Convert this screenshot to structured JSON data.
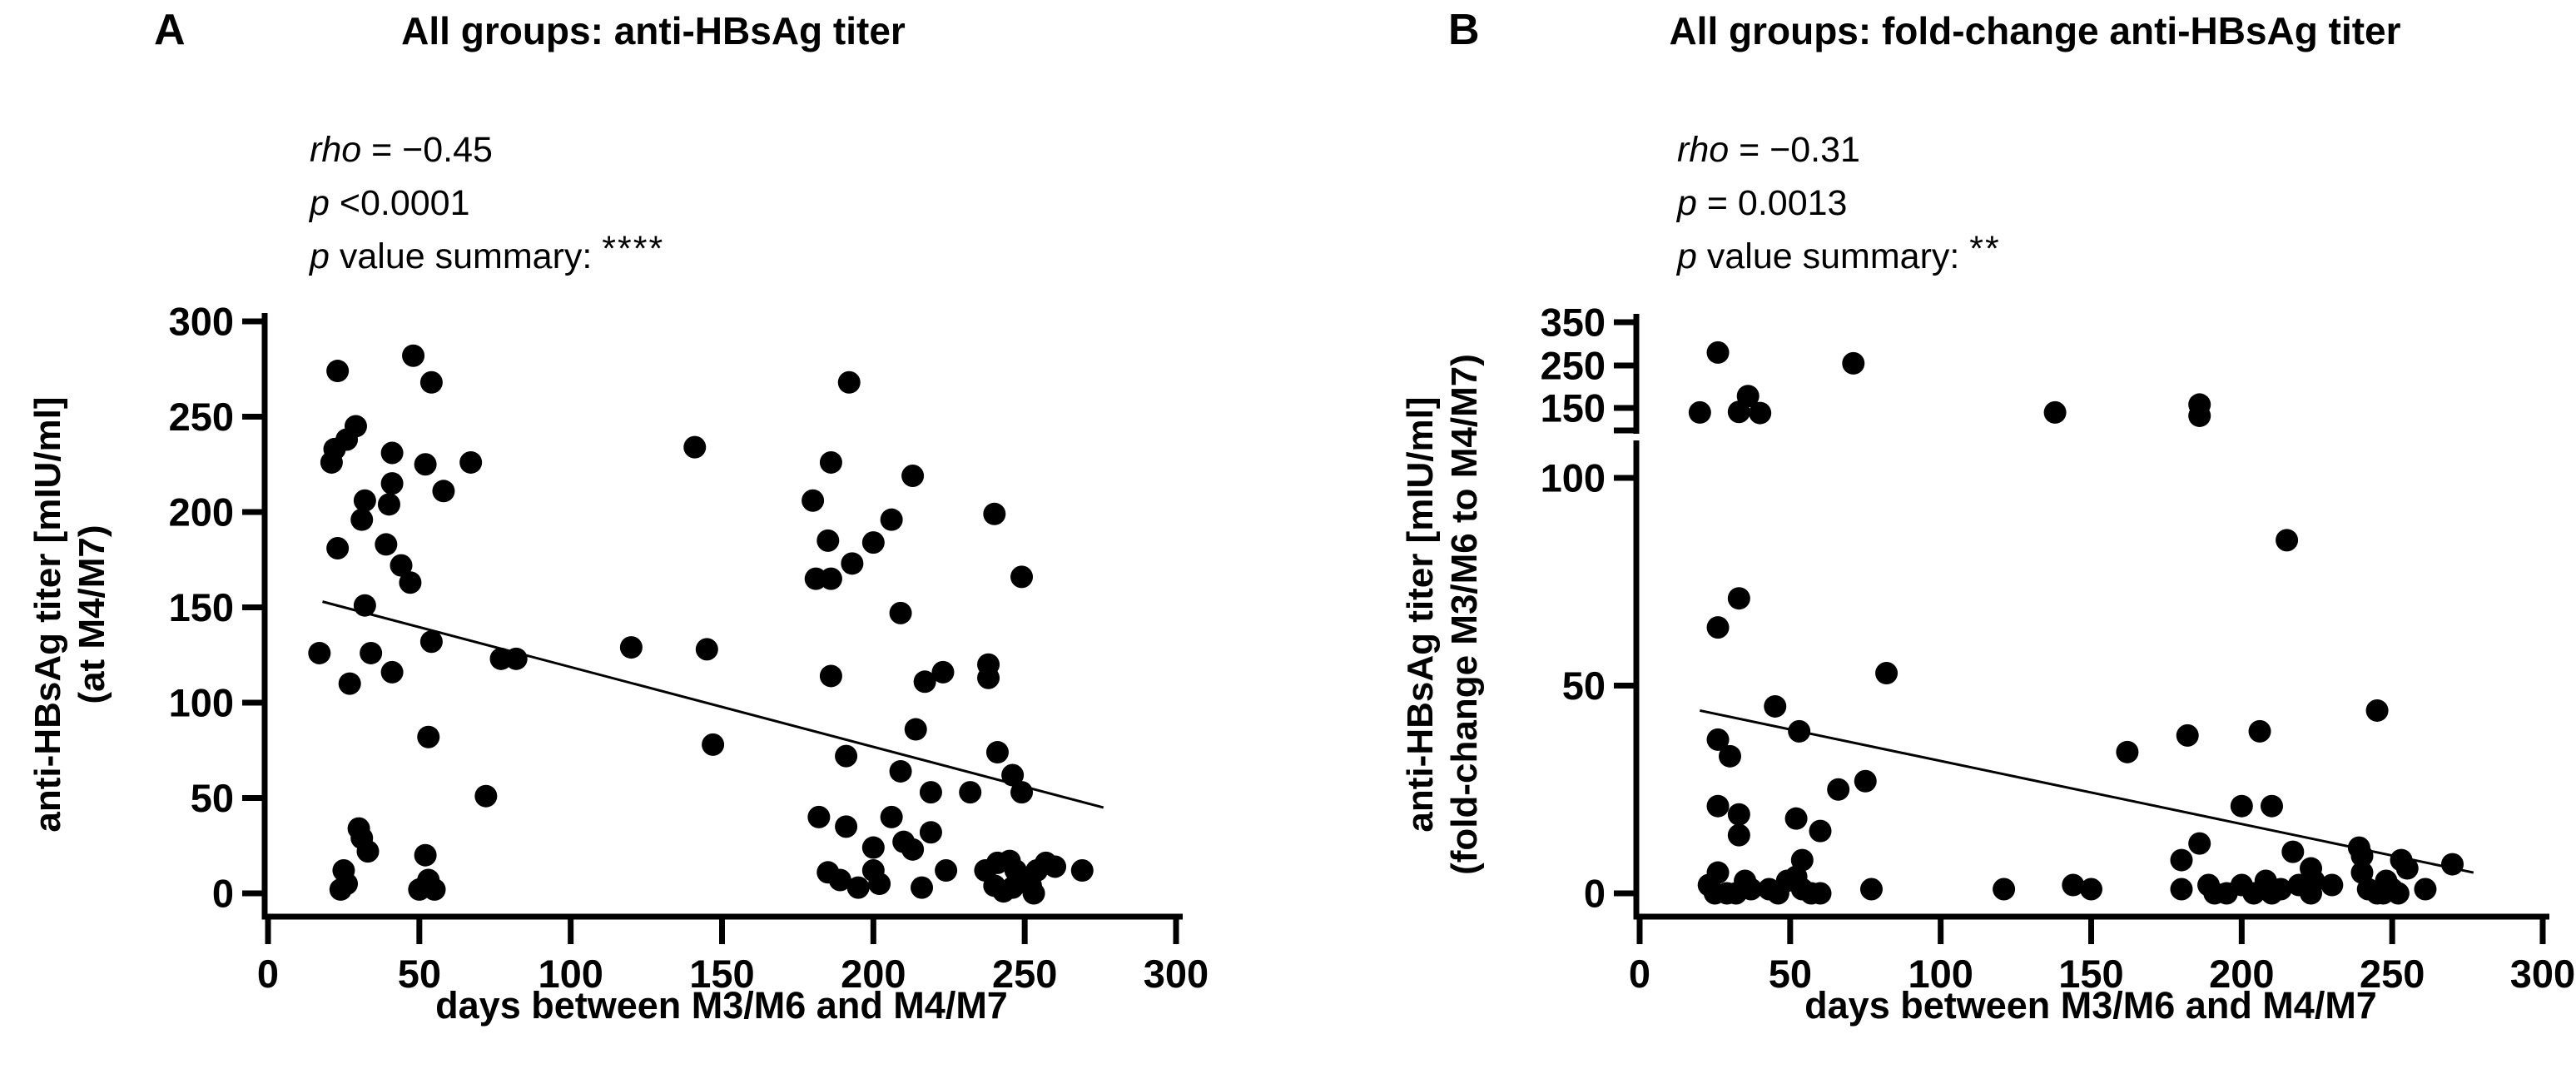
{
  "page": {
    "background": "#ffffff",
    "text_color": "#000000",
    "point_color": "#000000"
  },
  "panels": [
    {
      "label": "A",
      "title": "All groups: anti-HBsAg titer",
      "stats": {
        "rho_label": "rho",
        "rho_rest": " = −0.45",
        "p_label": "p",
        "p_rest": " <0.0001",
        "summary_p_label": "p",
        "summary_rest": " value summary: ",
        "stars": "****"
      },
      "x_axis_label": "days between M3/M6 and M4/M7",
      "y_axis_label_line1": "anti-HBsAg titer [mIU/ml]",
      "y_axis_label_line2": "(at M4/M7)"
    },
    {
      "label": "B",
      "title": "All groups: fold-change anti-HBsAg titer",
      "stats": {
        "rho_label": "rho",
        "rho_rest": " = −0.31",
        "p_label": "p",
        "p_rest": " = 0.0013",
        "summary_p_label": "p",
        "summary_rest": " value summary: ",
        "stars": "**"
      },
      "x_axis_label": "days between M3/M6 and M4/M7",
      "y_axis_label_line1": "anti-HBsAg titer [mIU/ml]",
      "y_axis_label_line2": "(fold-change M3/M6 to M4/M7)"
    }
  ],
  "chart_data": [
    {
      "type": "scatter",
      "panel": "A",
      "title": "All groups: anti-HBsAg titer",
      "xlabel": "days between M3/M6 and M4/M7",
      "ylabel": [
        "anti-HBsAg titer [mIU/ml]",
        "(at M4/M7)"
      ],
      "xlim": [
        0,
        300
      ],
      "ylim": [
        0,
        300
      ],
      "xticks": [
        0,
        50,
        100,
        150,
        200,
        250,
        300
      ],
      "yticks": [
        0,
        50,
        100,
        150,
        200,
        250,
        300
      ],
      "grid": false,
      "marker": "filled-black-circle",
      "correlation": {
        "rho": -0.45,
        "p": "<0.0001",
        "p_summary": "****"
      },
      "trend_line": {
        "x1": 18,
        "y1": 153,
        "x2": 276,
        "y2": 45
      },
      "points": [
        [
          23,
          274
        ],
        [
          48,
          282
        ],
        [
          54,
          268
        ],
        [
          29,
          245
        ],
        [
          26,
          238
        ],
        [
          22,
          233
        ],
        [
          21,
          226
        ],
        [
          41,
          231
        ],
        [
          52,
          225
        ],
        [
          67,
          226
        ],
        [
          41,
          215
        ],
        [
          58,
          211
        ],
        [
          40,
          204
        ],
        [
          32,
          206
        ],
        [
          31,
          196
        ],
        [
          23,
          181
        ],
        [
          39,
          183
        ],
        [
          44,
          172
        ],
        [
          47,
          163
        ],
        [
          32,
          151
        ],
        [
          54,
          132
        ],
        [
          17,
          126
        ],
        [
          34,
          126
        ],
        [
          41,
          116
        ],
        [
          27,
          110
        ],
        [
          77,
          123
        ],
        [
          82,
          123
        ],
        [
          53,
          82
        ],
        [
          72,
          51
        ],
        [
          30,
          34
        ],
        [
          31,
          29
        ],
        [
          33,
          22
        ],
        [
          25,
          12
        ],
        [
          26,
          5
        ],
        [
          24,
          2
        ],
        [
          52,
          20
        ],
        [
          53,
          7
        ],
        [
          50,
          2
        ],
        [
          55,
          2
        ],
        [
          120,
          129
        ],
        [
          145,
          128
        ],
        [
          147,
          78
        ],
        [
          141,
          234
        ],
        [
          192,
          268
        ],
        [
          186,
          226
        ],
        [
          213,
          219
        ],
        [
          180,
          206
        ],
        [
          206,
          196
        ],
        [
          185,
          185
        ],
        [
          200,
          184
        ],
        [
          193,
          173
        ],
        [
          181,
          165
        ],
        [
          186,
          165
        ],
        [
          240,
          199
        ],
        [
          249,
          166
        ],
        [
          209,
          147
        ],
        [
          238,
          120
        ],
        [
          186,
          114
        ],
        [
          217,
          111
        ],
        [
          223,
          116
        ],
        [
          238,
          113
        ],
        [
          191,
          72
        ],
        [
          214,
          86
        ],
        [
          209,
          64
        ],
        [
          219,
          53
        ],
        [
          232,
          53
        ],
        [
          241,
          74
        ],
        [
          246,
          62
        ],
        [
          249,
          53
        ],
        [
          182,
          40
        ],
        [
          191,
          35
        ],
        [
          200,
          24
        ],
        [
          206,
          40
        ],
        [
          210,
          27
        ],
        [
          213,
          23
        ],
        [
          219,
          32
        ],
        [
          224,
          12
        ],
        [
          200,
          12
        ],
        [
          202,
          5
        ],
        [
          185,
          11
        ],
        [
          189,
          7
        ],
        [
          195,
          3
        ],
        [
          216,
          3
        ],
        [
          237,
          12
        ],
        [
          241,
          16
        ],
        [
          245,
          17
        ],
        [
          247,
          12
        ],
        [
          240,
          4
        ],
        [
          243,
          1
        ],
        [
          246,
          3
        ],
        [
          249,
          7
        ],
        [
          252,
          4
        ],
        [
          254,
          12
        ],
        [
          257,
          16
        ],
        [
          260,
          14
        ],
        [
          253,
          0
        ],
        [
          269,
          12
        ]
      ]
    },
    {
      "type": "scatter",
      "panel": "B",
      "title": "All groups: fold-change anti-HBsAg titer",
      "xlabel": "days between M3/M6 and M4/M7",
      "ylabel": [
        "anti-HBsAg titer [mIU/ml]",
        "(fold-change M3/M6 to M4/M7)"
      ],
      "xlim": [
        0,
        300
      ],
      "ylim": [
        0,
        350
      ],
      "xticks": [
        0,
        50,
        100,
        150,
        200,
        250,
        300
      ],
      "yticks": [
        0,
        50,
        100,
        150,
        250,
        350
      ],
      "y_axis_break": {
        "break_at": 110,
        "note": "segmented axis: values above 110 compressed ~10x"
      },
      "grid": false,
      "marker": "filled-black-circle",
      "correlation": {
        "rho": -0.31,
        "p": "0.0013",
        "p_summary": "**"
      },
      "trend_line": {
        "x1": 20,
        "y1": 44,
        "x2": 277,
        "y2": 5
      },
      "points": [
        [
          26,
          280
        ],
        [
          71,
          255
        ],
        [
          36,
          178
        ],
        [
          20,
          142
        ],
        [
          33,
          143
        ],
        [
          40,
          141
        ],
        [
          138,
          142
        ],
        [
          186,
          158
        ],
        [
          186,
          136
        ],
        [
          215,
          85
        ],
        [
          82,
          53
        ],
        [
          45,
          45
        ],
        [
          53,
          39
        ],
        [
          26,
          37
        ],
        [
          30,
          33
        ],
        [
          26,
          64
        ],
        [
          33,
          71
        ],
        [
          66,
          25
        ],
        [
          75,
          27
        ],
        [
          26,
          21
        ],
        [
          33,
          19
        ],
        [
          33,
          14
        ],
        [
          52,
          18
        ],
        [
          60,
          15
        ],
        [
          54,
          8
        ],
        [
          23,
          2
        ],
        [
          26,
          5
        ],
        [
          29,
          0
        ],
        [
          32,
          0
        ],
        [
          35,
          3
        ],
        [
          37,
          1
        ],
        [
          25,
          0
        ],
        [
          43,
          1
        ],
        [
          46,
          0
        ],
        [
          49,
          3
        ],
        [
          52,
          4
        ],
        [
          54,
          1
        ],
        [
          57,
          0
        ],
        [
          60,
          0
        ],
        [
          77,
          1
        ],
        [
          121,
          1
        ],
        [
          144,
          2
        ],
        [
          150,
          1
        ],
        [
          162,
          34
        ],
        [
          182,
          38
        ],
        [
          206,
          39
        ],
        [
          245,
          44
        ],
        [
          200,
          21
        ],
        [
          210,
          21
        ],
        [
          217,
          10
        ],
        [
          186,
          12
        ],
        [
          180,
          8
        ],
        [
          223,
          6
        ],
        [
          224,
          3
        ],
        [
          239,
          11
        ],
        [
          240,
          9
        ],
        [
          253,
          8
        ],
        [
          255,
          6
        ],
        [
          270,
          7
        ],
        [
          261,
          1
        ],
        [
          180,
          1
        ],
        [
          189,
          2
        ],
        [
          191,
          0
        ],
        [
          195,
          0
        ],
        [
          200,
          2
        ],
        [
          204,
          0
        ],
        [
          208,
          3
        ],
        [
          210,
          0
        ],
        [
          213,
          1
        ],
        [
          219,
          2
        ],
        [
          223,
          0
        ],
        [
          230,
          2
        ],
        [
          240,
          5
        ],
        [
          242,
          1
        ],
        [
          245,
          0
        ],
        [
          248,
          3
        ],
        [
          250,
          1
        ],
        [
          252,
          0
        ],
        [
          247,
          0
        ]
      ]
    }
  ]
}
